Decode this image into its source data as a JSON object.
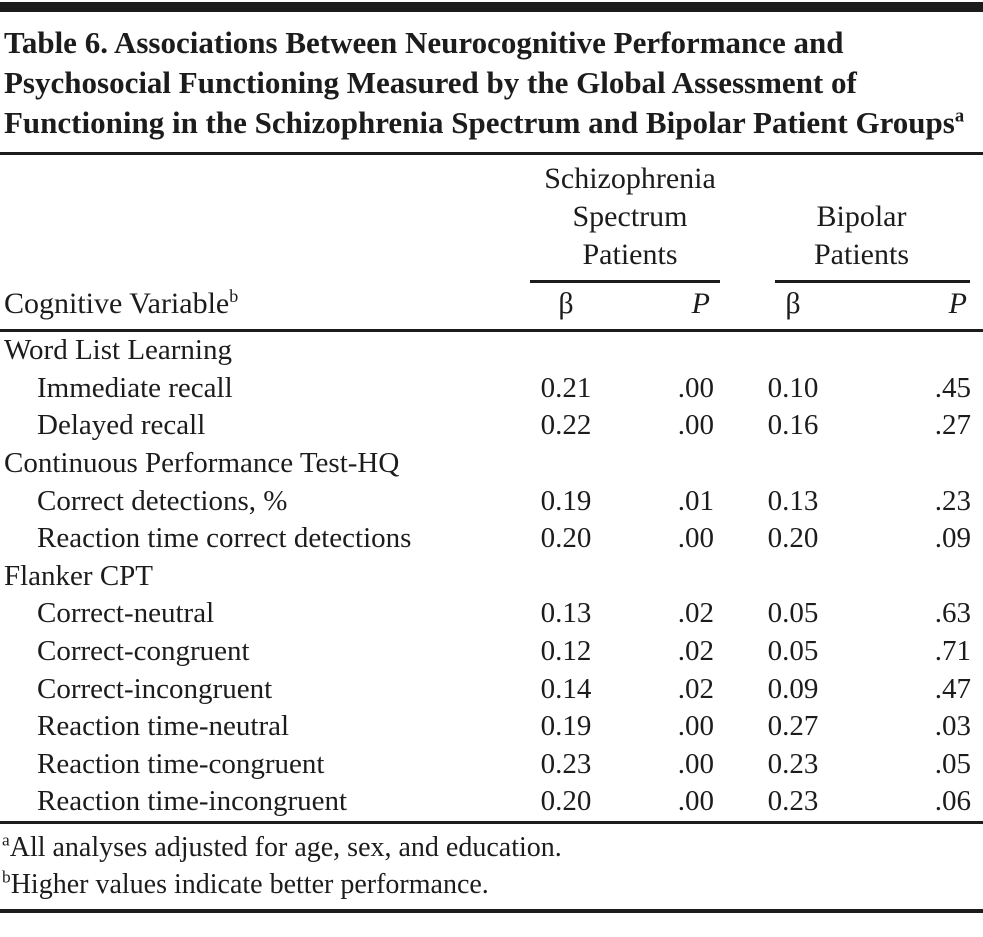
{
  "page": {
    "title": "Table 6. Associations Between Neurocognitive Performance and Psychosocial Functioning Measured by the Global Assessment of Functioning in the Schizophrenia Spectrum and Bipolar Patient Groups",
    "title_superscript": "a"
  },
  "table": {
    "stub_header": "Cognitive Variable",
    "stub_header_superscript": "b",
    "col_groups": [
      {
        "label": "Schizophrenia Spectrum Patients"
      },
      {
        "label": "Bipolar Patients"
      }
    ],
    "sub_headers": [
      "β",
      "P",
      "β",
      "P"
    ],
    "rows": [
      {
        "label": "Word List Learning",
        "indent": false,
        "values": [
          "",
          "",
          "",
          ""
        ]
      },
      {
        "label": "Immediate recall",
        "indent": true,
        "values": [
          "0.21",
          ".00",
          "0.10",
          ".45"
        ]
      },
      {
        "label": "Delayed recall",
        "indent": true,
        "values": [
          "0.22",
          ".00",
          "0.16",
          ".27"
        ]
      },
      {
        "label": "Continuous Performance Test-HQ",
        "indent": false,
        "values": [
          "",
          "",
          "",
          ""
        ]
      },
      {
        "label": "Correct detections, %",
        "indent": true,
        "values": [
          "0.19",
          ".01",
          "0.13",
          ".23"
        ]
      },
      {
        "label": "Reaction time correct detections",
        "indent": true,
        "values": [
          "0.20",
          ".00",
          "0.20",
          ".09"
        ]
      },
      {
        "label": "Flanker CPT",
        "indent": false,
        "values": [
          "",
          "",
          "",
          ""
        ]
      },
      {
        "label": "Correct-neutral",
        "indent": true,
        "values": [
          "0.13",
          ".02",
          "0.05",
          ".63"
        ]
      },
      {
        "label": "Correct-congruent",
        "indent": true,
        "values": [
          "0.12",
          ".02",
          "0.05",
          ".71"
        ]
      },
      {
        "label": "Correct-incongruent",
        "indent": true,
        "values": [
          "0.14",
          ".02",
          "0.09",
          ".47"
        ]
      },
      {
        "label": "Reaction time-neutral",
        "indent": true,
        "values": [
          "0.19",
          ".00",
          "0.27",
          ".03"
        ]
      },
      {
        "label": "Reaction time-congruent",
        "indent": true,
        "values": [
          "0.23",
          ".00",
          "0.23",
          ".05"
        ]
      },
      {
        "label": "Reaction time-incongruent",
        "indent": true,
        "values": [
          "0.20",
          ".00",
          "0.23",
          ".06"
        ]
      }
    ]
  },
  "footnotes": [
    {
      "marker": "a",
      "text": "All analyses adjusted for age, sex, and education."
    },
    {
      "marker": "b",
      "text": "Higher values indicate better performance."
    }
  ],
  "colors": {
    "text": "#1c1c1c",
    "rule": "#1c1c1c",
    "background": "#ffffff"
  }
}
